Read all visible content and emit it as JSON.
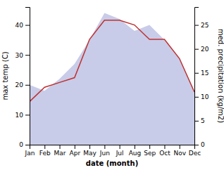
{
  "chart_data": {
    "type": "area",
    "categories": [
      "Jan",
      "Feb",
      "Mar",
      "Apr",
      "May",
      "Jun",
      "Jul",
      "Aug",
      "Sep",
      "Oct",
      "Nov",
      "Dec"
    ],
    "series": [
      {
        "type": "area",
        "color": "#c8cce8",
        "values": [
          20,
          18,
          22,
          27,
          35,
          44,
          42,
          38,
          40,
          35,
          29,
          18
        ]
      },
      {
        "type": "line",
        "color": "#c03030",
        "axis": "y2",
        "values": [
          9,
          12,
          13,
          14,
          22,
          26,
          26,
          25,
          22,
          22,
          18,
          11
        ]
      }
    ],
    "xlabel": "date (month)",
    "ylabel": "max temp (C)",
    "y2label": "med. precipitation (kg/m2)",
    "ylim": [
      0,
      46
    ],
    "yticks": [
      0,
      10,
      20,
      30,
      40
    ],
    "y2lim": [
      0,
      28.75
    ],
    "y2ticks": [
      0,
      5,
      10,
      15,
      20,
      25
    ],
    "grid": false
  }
}
